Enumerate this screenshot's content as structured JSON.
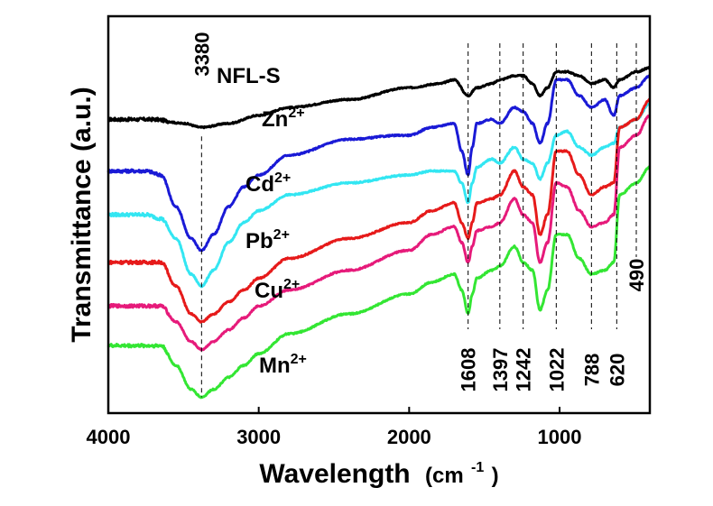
{
  "chart_data": {
    "type": "line",
    "xlabel": "Wavelength",
    "xlabel_unit": "(cm",
    "xlabel_unit_sup": "-1",
    "xlabel_unit_close": ")",
    "ylabel": "Transmittance (a.u.)",
    "xlim": [
      4000,
      400
    ],
    "x_reversed": true,
    "x_ticks": [
      {
        "value": 4000,
        "label": "4000"
      },
      {
        "value": 3000,
        "label": "3000"
      },
      {
        "value": 2000,
        "label": "2000"
      },
      {
        "value": 1000,
        "label": "1000"
      }
    ],
    "y_ticks_shown": false,
    "ylim": [
      0,
      100
    ],
    "series": [
      {
        "label_base": "NFL-S",
        "label_sup": "",
        "color": "#000000",
        "points": [
          [
            4000,
            74
          ],
          [
            3700,
            74
          ],
          [
            3500,
            73
          ],
          [
            3380,
            72
          ],
          [
            3200,
            73
          ],
          [
            3000,
            75
          ],
          [
            2800,
            77
          ],
          [
            2400,
            79
          ],
          [
            2000,
            82
          ],
          [
            1800,
            83
          ],
          [
            1700,
            84
          ],
          [
            1608,
            80
          ],
          [
            1550,
            82
          ],
          [
            1450,
            83
          ],
          [
            1397,
            84
          ],
          [
            1300,
            85
          ],
          [
            1242,
            85
          ],
          [
            1180,
            83
          ],
          [
            1130,
            80
          ],
          [
            1080,
            82
          ],
          [
            1022,
            86
          ],
          [
            950,
            86
          ],
          [
            870,
            85
          ],
          [
            788,
            83
          ],
          [
            700,
            84
          ],
          [
            640,
            82
          ],
          [
            600,
            84
          ],
          [
            490,
            86
          ],
          [
            400,
            87
          ]
        ]
      },
      {
        "label_base": "Zn",
        "label_sup": "2+",
        "color": "#1a1ad6",
        "points": [
          [
            4000,
            61
          ],
          [
            3750,
            61
          ],
          [
            3650,
            60
          ],
          [
            3550,
            52
          ],
          [
            3450,
            44
          ],
          [
            3380,
            41
          ],
          [
            3300,
            45
          ],
          [
            3200,
            52
          ],
          [
            3100,
            57
          ],
          [
            3000,
            60
          ],
          [
            2800,
            65
          ],
          [
            2400,
            69
          ],
          [
            2050,
            70
          ],
          [
            2000,
            70
          ],
          [
            1850,
            72
          ],
          [
            1700,
            73
          ],
          [
            1650,
            66
          ],
          [
            1608,
            60
          ],
          [
            1580,
            67
          ],
          [
            1550,
            73
          ],
          [
            1450,
            74
          ],
          [
            1397,
            73
          ],
          [
            1300,
            77
          ],
          [
            1242,
            76
          ],
          [
            1180,
            73
          ],
          [
            1130,
            68
          ],
          [
            1080,
            73
          ],
          [
            1022,
            84
          ],
          [
            950,
            84
          ],
          [
            870,
            80
          ],
          [
            788,
            77
          ],
          [
            700,
            79
          ],
          [
            640,
            75
          ],
          [
            600,
            80
          ],
          [
            490,
            82
          ],
          [
            400,
            85
          ]
        ]
      },
      {
        "label_base": "Cd",
        "label_sup": "2+",
        "color": "#33e6f2",
        "points": [
          [
            4000,
            50
          ],
          [
            3750,
            50
          ],
          [
            3650,
            49
          ],
          [
            3550,
            44
          ],
          [
            3450,
            35
          ],
          [
            3380,
            32
          ],
          [
            3300,
            36
          ],
          [
            3200,
            43
          ],
          [
            3100,
            48
          ],
          [
            3000,
            51
          ],
          [
            2800,
            55
          ],
          [
            2400,
            58
          ],
          [
            2000,
            60
          ],
          [
            1850,
            61
          ],
          [
            1700,
            61
          ],
          [
            1650,
            58
          ],
          [
            1608,
            53
          ],
          [
            1580,
            58
          ],
          [
            1550,
            62
          ],
          [
            1450,
            64
          ],
          [
            1397,
            63
          ],
          [
            1300,
            67
          ],
          [
            1242,
            64
          ],
          [
            1180,
            63
          ],
          [
            1130,
            59
          ],
          [
            1080,
            63
          ],
          [
            1022,
            70
          ],
          [
            950,
            71
          ],
          [
            870,
            67
          ],
          [
            788,
            65
          ],
          [
            700,
            67
          ],
          [
            640,
            68
          ],
          [
            600,
            72
          ],
          [
            490,
            74
          ],
          [
            400,
            78
          ]
        ]
      },
      {
        "label_base": "Pb",
        "label_sup": "2+",
        "color": "#e61a1a",
        "points": [
          [
            4000,
            38
          ],
          [
            3750,
            38
          ],
          [
            3650,
            38
          ],
          [
            3550,
            32
          ],
          [
            3450,
            25
          ],
          [
            3380,
            23
          ],
          [
            3300,
            25
          ],
          [
            3200,
            28
          ],
          [
            3100,
            31
          ],
          [
            3000,
            34
          ],
          [
            2800,
            39
          ],
          [
            2400,
            44
          ],
          [
            2000,
            48
          ],
          [
            1850,
            51
          ],
          [
            1700,
            53
          ],
          [
            1650,
            48
          ],
          [
            1608,
            44
          ],
          [
            1580,
            48
          ],
          [
            1550,
            53
          ],
          [
            1450,
            54
          ],
          [
            1397,
            55
          ],
          [
            1300,
            61
          ],
          [
            1242,
            57
          ],
          [
            1180,
            55
          ],
          [
            1130,
            45
          ],
          [
            1080,
            50
          ],
          [
            1022,
            66
          ],
          [
            950,
            66
          ],
          [
            870,
            60
          ],
          [
            788,
            55
          ],
          [
            700,
            57
          ],
          [
            640,
            58
          ],
          [
            600,
            72
          ],
          [
            490,
            74
          ],
          [
            400,
            79
          ]
        ]
      },
      {
        "label_base": "Cu",
        "label_sup": "2+",
        "color": "#e61a7a",
        "points": [
          [
            4000,
            27
          ],
          [
            3750,
            27
          ],
          [
            3650,
            27
          ],
          [
            3550,
            23
          ],
          [
            3450,
            18
          ],
          [
            3380,
            16
          ],
          [
            3300,
            18
          ],
          [
            3200,
            21
          ],
          [
            3100,
            24
          ],
          [
            3000,
            27
          ],
          [
            2800,
            31
          ],
          [
            2400,
            36
          ],
          [
            2000,
            41
          ],
          [
            1850,
            45
          ],
          [
            1700,
            47
          ],
          [
            1650,
            43
          ],
          [
            1608,
            38
          ],
          [
            1580,
            42
          ],
          [
            1550,
            46
          ],
          [
            1450,
            47
          ],
          [
            1397,
            48
          ],
          [
            1300,
            54
          ],
          [
            1242,
            50
          ],
          [
            1180,
            48
          ],
          [
            1130,
            38
          ],
          [
            1080,
            43
          ],
          [
            1022,
            58
          ],
          [
            950,
            57
          ],
          [
            870,
            51
          ],
          [
            788,
            47
          ],
          [
            700,
            48
          ],
          [
            640,
            50
          ],
          [
            600,
            67
          ],
          [
            490,
            70
          ],
          [
            400,
            75
          ]
        ]
      },
      {
        "label_base": "Mn",
        "label_sup": "2+",
        "color": "#33e633",
        "points": [
          [
            4000,
            17
          ],
          [
            3750,
            17
          ],
          [
            3650,
            17
          ],
          [
            3550,
            12
          ],
          [
            3450,
            6
          ],
          [
            3380,
            4
          ],
          [
            3300,
            6
          ],
          [
            3200,
            9
          ],
          [
            3100,
            12
          ],
          [
            3000,
            15
          ],
          [
            2800,
            20
          ],
          [
            2400,
            25
          ],
          [
            2000,
            30
          ],
          [
            1850,
            33
          ],
          [
            1700,
            35
          ],
          [
            1650,
            31
          ],
          [
            1608,
            25
          ],
          [
            1580,
            30
          ],
          [
            1550,
            34
          ],
          [
            1450,
            36
          ],
          [
            1397,
            37
          ],
          [
            1300,
            42
          ],
          [
            1242,
            38
          ],
          [
            1180,
            36
          ],
          [
            1130,
            26
          ],
          [
            1080,
            31
          ],
          [
            1022,
            45
          ],
          [
            950,
            45
          ],
          [
            870,
            39
          ],
          [
            788,
            35
          ],
          [
            700,
            36
          ],
          [
            640,
            38
          ],
          [
            600,
            55
          ],
          [
            490,
            58
          ],
          [
            400,
            62
          ]
        ]
      }
    ],
    "reference_lines": [
      {
        "x": 3380,
        "label": "3380",
        "label_pos": "top"
      },
      {
        "x": 1608,
        "label": "1608",
        "label_pos": "bottom"
      },
      {
        "x": 1397,
        "label": "1397",
        "label_pos": "bottom"
      },
      {
        "x": 1242,
        "label": "1242",
        "label_pos": "bottom"
      },
      {
        "x": 1022,
        "label": "1022",
        "label_pos": "bottom"
      },
      {
        "x": 788,
        "label": "788",
        "label_pos": "bottom"
      },
      {
        "x": 620,
        "label": "620",
        "label_pos": "bottom"
      },
      {
        "x": 490,
        "label": "490",
        "label_pos": "middle"
      }
    ]
  }
}
